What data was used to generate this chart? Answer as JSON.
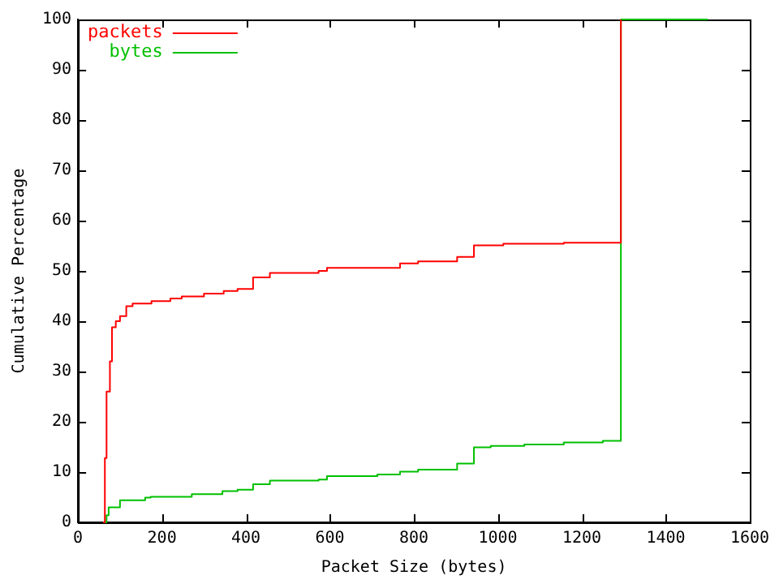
{
  "chart_data": {
    "type": "step",
    "xlabel": "Packet Size (bytes)",
    "ylabel": "Cumulative Percentage",
    "xlim": [
      0,
      1600
    ],
    "xticks": [
      0,
      200,
      400,
      600,
      800,
      1000,
      1200,
      1400,
      1600
    ],
    "ylim": [
      0,
      100
    ],
    "yticks": [
      0,
      10,
      20,
      30,
      40,
      50,
      60,
      70,
      80,
      90,
      100
    ],
    "grid": false,
    "legend": "top left",
    "series": [
      {
        "name": "packets",
        "color": "#ff0000",
        "x": [
          60,
          64,
          68,
          76,
          81,
          90,
          100,
          115,
          130,
          175,
          220,
          247,
          300,
          347,
          380,
          417,
          457,
          573,
          593,
          767,
          810,
          903,
          943,
          1013,
          1157,
          1293
        ],
        "values": [
          0,
          12.8,
          26,
          32,
          38.8,
          40,
          41,
          43,
          43.5,
          44,
          44.5,
          44.9,
          45.5,
          46,
          46.4,
          48.7,
          49.6,
          50,
          50.6,
          51.5,
          51.9,
          52.8,
          55.1,
          55.4,
          55.6,
          100
        ]
      },
      {
        "name": "bytes",
        "color": "#00c000",
        "x": [
          60,
          68,
          73,
          100,
          160,
          173,
          271,
          344,
          380,
          417,
          457,
          573,
          593,
          713,
          767,
          810,
          903,
          943,
          983,
          1063,
          1157,
          1250,
          1293,
          1500
        ],
        "values": [
          0,
          1.4,
          3,
          4.4,
          4.9,
          5.1,
          5.6,
          6.2,
          6.5,
          7.6,
          8.3,
          8.5,
          9.2,
          9.5,
          10.1,
          10.5,
          11.7,
          14.9,
          15.2,
          15.5,
          15.9,
          16.2,
          100,
          100
        ]
      }
    ]
  }
}
